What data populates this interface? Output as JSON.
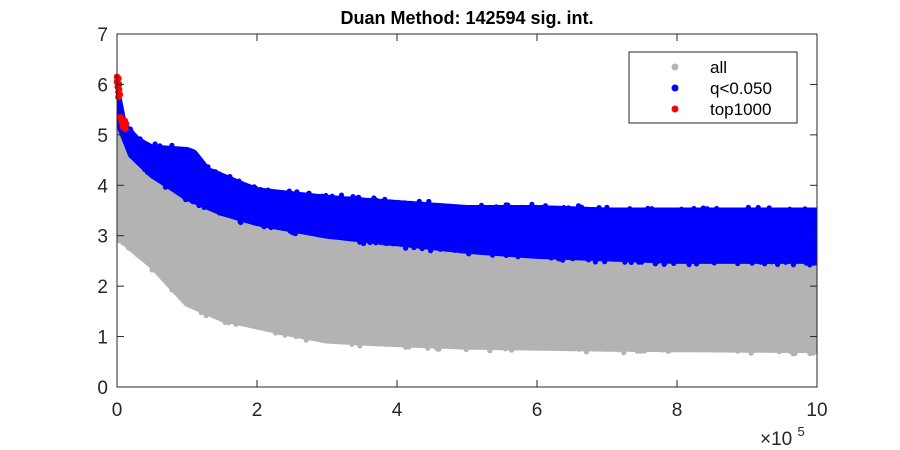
{
  "chart_data": {
    "type": "scatter",
    "title": "Duan Method: 142594 sig. int.",
    "xlabel": "",
    "ylabel": "",
    "x_multiplier_label": "×10",
    "x_multiplier_exponent": "5",
    "xlim": [
      0,
      10
    ],
    "ylim": [
      0,
      7
    ],
    "xticks": [
      0,
      2,
      4,
      6,
      8,
      10
    ],
    "yticks": [
      0,
      1,
      2,
      3,
      4,
      5,
      6,
      7
    ],
    "grid": false,
    "legend_position": "top-right",
    "series": [
      {
        "name": "all",
        "color": "#b3b3b3",
        "marker": "filled-circle",
        "lower_envelope": [
          [
            0,
            3.0
          ],
          [
            0.2,
            2.75
          ],
          [
            0.5,
            2.4
          ],
          [
            1.0,
            1.65
          ],
          [
            1.5,
            1.35
          ],
          [
            2.0,
            1.2
          ],
          [
            2.5,
            1.05
          ],
          [
            3.0,
            0.92
          ],
          [
            3.5,
            0.88
          ],
          [
            4.0,
            0.85
          ],
          [
            5.0,
            0.8
          ],
          [
            6.0,
            0.78
          ],
          [
            7.0,
            0.76
          ],
          [
            8.0,
            0.75
          ],
          [
            9.0,
            0.74
          ],
          [
            10.0,
            0.73
          ]
        ],
        "upper_envelope": [
          [
            0,
            5.3
          ],
          [
            0.2,
            4.8
          ],
          [
            0.5,
            4.3
          ],
          [
            1.0,
            3.85
          ],
          [
            1.5,
            3.5
          ],
          [
            2.0,
            3.3
          ],
          [
            3.0,
            3.05
          ],
          [
            4.0,
            2.9
          ],
          [
            5.0,
            2.75
          ],
          [
            6.0,
            2.65
          ],
          [
            7.0,
            2.6
          ],
          [
            8.0,
            2.55
          ],
          [
            9.0,
            2.55
          ],
          [
            10.0,
            2.55
          ]
        ]
      },
      {
        "name": "q<0.050",
        "color": "#0000ff",
        "marker": "filled-circle",
        "lower_envelope": [
          [
            0,
            5.3
          ],
          [
            0.2,
            4.6
          ],
          [
            0.5,
            4.2
          ],
          [
            1.0,
            3.75
          ],
          [
            1.5,
            3.45
          ],
          [
            2.0,
            3.25
          ],
          [
            3.0,
            3.0
          ],
          [
            4.0,
            2.85
          ],
          [
            5.0,
            2.7
          ],
          [
            6.0,
            2.6
          ],
          [
            7.0,
            2.55
          ],
          [
            8.0,
            2.5
          ],
          [
            9.0,
            2.5
          ],
          [
            10.0,
            2.5
          ]
        ],
        "upper_envelope": [
          [
            0,
            5.9
          ],
          [
            0.1,
            5.2
          ],
          [
            0.3,
            4.9
          ],
          [
            0.5,
            4.75
          ],
          [
            1.0,
            4.7
          ],
          [
            1.1,
            4.65
          ],
          [
            1.3,
            4.3
          ],
          [
            2.0,
            3.9
          ],
          [
            3.0,
            3.75
          ],
          [
            4.0,
            3.65
          ],
          [
            5.0,
            3.55
          ],
          [
            6.0,
            3.55
          ],
          [
            7.0,
            3.5
          ],
          [
            8.0,
            3.5
          ],
          [
            9.0,
            3.5
          ],
          [
            10.0,
            3.5
          ]
        ]
      },
      {
        "name": "top1000",
        "color": "#ff0000",
        "marker": "filled-circle",
        "points": [
          [
            0.0,
            6.15
          ],
          [
            0.0,
            6.05
          ],
          [
            0.01,
            5.95
          ],
          [
            0.02,
            5.85
          ],
          [
            0.02,
            5.75
          ],
          [
            0.01,
            6.1
          ],
          [
            0.03,
            6.0
          ],
          [
            0.03,
            5.9
          ],
          [
            0.02,
            6.12
          ],
          [
            0.04,
            5.8
          ],
          [
            0.05,
            5.35
          ],
          [
            0.06,
            5.3
          ],
          [
            0.07,
            5.25
          ],
          [
            0.08,
            5.2
          ],
          [
            0.09,
            5.15
          ],
          [
            0.1,
            5.2
          ],
          [
            0.12,
            5.12
          ],
          [
            0.11,
            5.28
          ],
          [
            0.13,
            5.22
          ]
        ]
      }
    ]
  }
}
